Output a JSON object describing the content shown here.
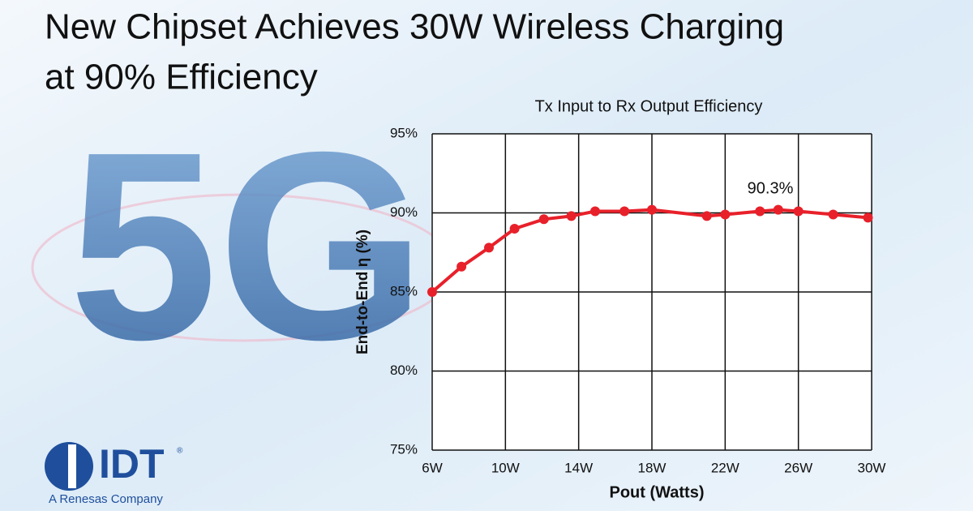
{
  "headline": {
    "line1": "New Chipset Achieves 30W Wireless Charging",
    "line2": "at 90% Efficiency"
  },
  "background_text": "5G",
  "logo": {
    "name": "IDT",
    "mark": "®",
    "tagline": "A Renesas Company"
  },
  "chart_data": {
    "type": "line",
    "title": "Tx Input to Rx Output Efficiency",
    "x_label": "Pout (Watts)",
    "y_label": "End-to-End η (%)",
    "annotation": "90.3%",
    "color": "#e8202a",
    "grid": true,
    "x": [
      6,
      7.6,
      9.1,
      10.5,
      12.1,
      13.6,
      14.9,
      16.5,
      18.0,
      21.0,
      22.0,
      23.9,
      24.9,
      26.0,
      27.9,
      29.8
    ],
    "values": [
      85.0,
      86.6,
      87.8,
      89.0,
      89.6,
      89.8,
      90.1,
      90.1,
      90.2,
      89.8,
      89.9,
      90.1,
      90.2,
      90.1,
      89.9,
      89.7
    ],
    "xlim": [
      6,
      30
    ],
    "xticks": [
      {
        "value": 6,
        "label": "6W"
      },
      {
        "value": 10,
        "label": "10W"
      },
      {
        "value": 14,
        "label": "14W"
      },
      {
        "value": 18,
        "label": "18W"
      },
      {
        "value": 22,
        "label": "22W"
      },
      {
        "value": 26,
        "label": "26W"
      },
      {
        "value": 30,
        "label": "30W"
      }
    ],
    "ylim": [
      75,
      95
    ],
    "yticks": [
      {
        "value": 75,
        "label": "75%"
      },
      {
        "value": 80,
        "label": "80%"
      },
      {
        "value": 85,
        "label": "85%"
      },
      {
        "value": 90,
        "label": "90%"
      },
      {
        "value": 95,
        "label": "95%"
      }
    ]
  }
}
